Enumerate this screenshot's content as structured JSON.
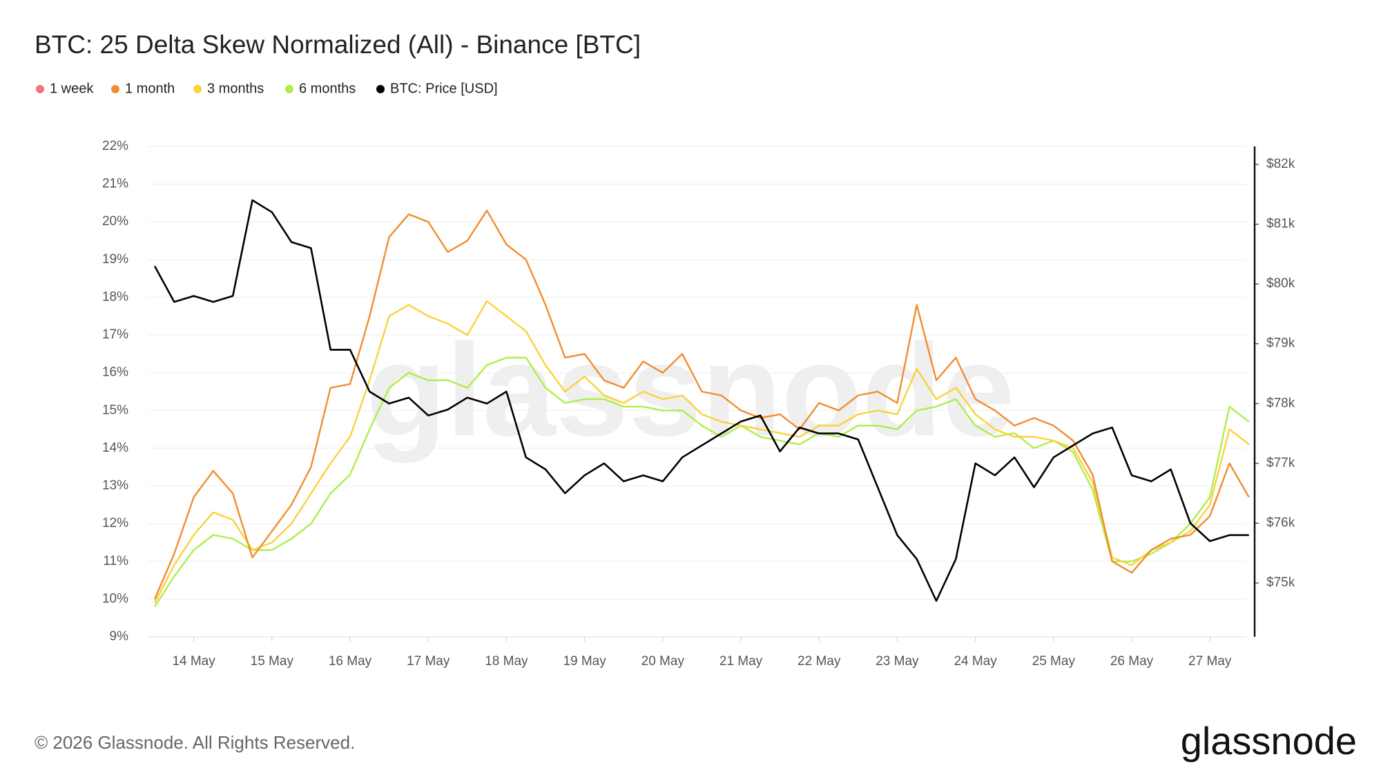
{
  "chart_data": {
    "type": "line",
    "title": "BTC: 25 Delta Skew Normalized (All) - Binance [BTC]",
    "watermark": "glassnode",
    "footer": "© 2026 Glassnode. All Rights Reserved.",
    "brand": "glassnode",
    "categories": [
      null,
      null,
      "14 May",
      null,
      null,
      null,
      "15 May",
      null,
      null,
      null,
      "16 May",
      null,
      null,
      null,
      "17 May",
      null,
      null,
      null,
      "18 May",
      null,
      null,
      null,
      "19 May",
      null,
      null,
      null,
      "20 May",
      null,
      null,
      null,
      "21 May",
      null,
      null,
      null,
      "22 May",
      null,
      null,
      null,
      "23 May",
      null,
      null,
      null,
      "24 May",
      null,
      null,
      null,
      "25 May",
      null,
      null,
      null,
      "26 May",
      null,
      null,
      null,
      "27 May",
      null,
      null
    ],
    "series": [
      {
        "name": "1 week",
        "color": "#f7717d",
        "values": [
          null,
          null,
          null,
          null,
          null,
          null,
          null,
          null,
          null,
          null,
          null,
          null,
          null,
          null,
          null,
          null,
          null,
          null,
          null,
          null,
          null,
          null,
          null,
          null,
          null,
          null,
          null,
          null,
          null,
          null,
          null,
          null,
          null,
          null,
          null,
          null,
          null,
          null,
          null,
          null,
          null,
          null,
          null,
          null,
          null,
          null,
          null,
          null,
          null,
          null,
          null,
          null,
          null,
          null,
          null,
          null,
          null
        ]
      },
      {
        "name": "1 month",
        "color": "#f28c2e",
        "values": [
          10.0,
          11.2,
          12.7,
          13.4,
          12.8,
          11.1,
          11.8,
          12.5,
          13.5,
          15.6,
          15.7,
          17.5,
          19.6,
          20.2,
          20.0,
          19.2,
          19.5,
          20.3,
          19.4,
          19.0,
          17.8,
          16.4,
          16.5,
          15.8,
          15.6,
          16.3,
          16.0,
          16.5,
          15.5,
          15.4,
          15.0,
          14.8,
          14.9,
          14.5,
          15.2,
          15.0,
          15.4,
          15.5,
          15.2,
          17.8,
          15.8,
          16.4,
          15.3,
          15.0,
          14.6,
          14.8,
          14.6,
          14.2,
          13.3,
          11.0,
          10.7,
          11.3,
          11.6,
          11.7,
          12.2,
          13.6,
          12.7
        ]
      },
      {
        "name": "3 months",
        "color": "#f8d33a",
        "values": [
          9.9,
          10.9,
          11.7,
          12.3,
          12.1,
          11.3,
          11.5,
          12.0,
          12.8,
          13.6,
          14.3,
          15.8,
          17.5,
          17.8,
          17.5,
          17.3,
          17.0,
          17.9,
          17.5,
          17.1,
          16.2,
          15.5,
          15.9,
          15.4,
          15.2,
          15.5,
          15.3,
          15.4,
          14.9,
          14.7,
          14.6,
          14.5,
          14.4,
          14.3,
          14.6,
          14.6,
          14.9,
          15.0,
          14.9,
          16.1,
          15.3,
          15.6,
          14.9,
          14.5,
          14.3,
          14.3,
          14.2,
          14.0,
          13.1,
          11.1,
          10.9,
          11.3,
          11.5,
          11.8,
          12.5,
          14.5,
          14.1
        ]
      },
      {
        "name": "6 months",
        "color": "#aeee4a",
        "values": [
          9.8,
          10.6,
          11.3,
          11.7,
          11.6,
          11.3,
          11.3,
          11.6,
          12.0,
          12.8,
          13.3,
          14.5,
          15.6,
          16.0,
          15.8,
          15.8,
          15.6,
          16.2,
          16.4,
          16.4,
          15.6,
          15.2,
          15.3,
          15.3,
          15.1,
          15.1,
          15.0,
          15.0,
          14.6,
          14.3,
          14.6,
          14.3,
          14.2,
          14.1,
          14.4,
          14.3,
          14.6,
          14.6,
          14.5,
          15.0,
          15.1,
          15.3,
          14.6,
          14.3,
          14.4,
          14.0,
          14.2,
          13.9,
          12.9,
          11.0,
          11.0,
          11.2,
          11.5,
          12.0,
          12.7,
          15.1,
          14.7
        ]
      },
      {
        "name": "BTC: Price [USD]",
        "color": "#000000",
        "axis": "y2",
        "values": [
          80300,
          79700,
          79800,
          79700,
          79800,
          81400,
          81200,
          80700,
          80600,
          78900,
          78900,
          78200,
          78000,
          78100,
          77800,
          77900,
          78100,
          78000,
          78200,
          77100,
          76900,
          76500,
          76800,
          77000,
          76700,
          76800,
          76700,
          77100,
          77300,
          77500,
          77700,
          77800,
          77200,
          77600,
          77500,
          77500,
          77400,
          76600,
          75800,
          75400,
          74700,
          75400,
          77000,
          76800,
          77100,
          76600,
          77100,
          77300,
          77500,
          77600,
          76800,
          76700,
          76900,
          76000,
          75700,
          75800,
          75800
        ]
      }
    ],
    "ylim": [
      9,
      22
    ],
    "yticks": [
      {
        "value": 9,
        "label": "9%"
      },
      {
        "value": 10,
        "label": "10%"
      },
      {
        "value": 11,
        "label": "11%"
      },
      {
        "value": 12,
        "label": "12%"
      },
      {
        "value": 13,
        "label": "13%"
      },
      {
        "value": 14,
        "label": "14%"
      },
      {
        "value": 15,
        "label": "15%"
      },
      {
        "value": 16,
        "label": "16%"
      },
      {
        "value": 17,
        "label": "17%"
      },
      {
        "value": 18,
        "label": "18%"
      },
      {
        "value": 19,
        "label": "19%"
      },
      {
        "value": 20,
        "label": "20%"
      },
      {
        "value": 21,
        "label": "21%"
      },
      {
        "value": 22,
        "label": "22%"
      }
    ],
    "y2lim": [
      74100,
      82300
    ],
    "y2ticks": [
      {
        "value": 75000,
        "label": "$75k"
      },
      {
        "value": 76000,
        "label": "$76k"
      },
      {
        "value": 77000,
        "label": "$77k"
      },
      {
        "value": 78000,
        "label": "$78k"
      },
      {
        "value": 79000,
        "label": "$79k"
      },
      {
        "value": 80000,
        "label": "$80k"
      },
      {
        "value": 81000,
        "label": "$81k"
      },
      {
        "value": 82000,
        "label": "$82k"
      }
    ],
    "grid": true
  }
}
